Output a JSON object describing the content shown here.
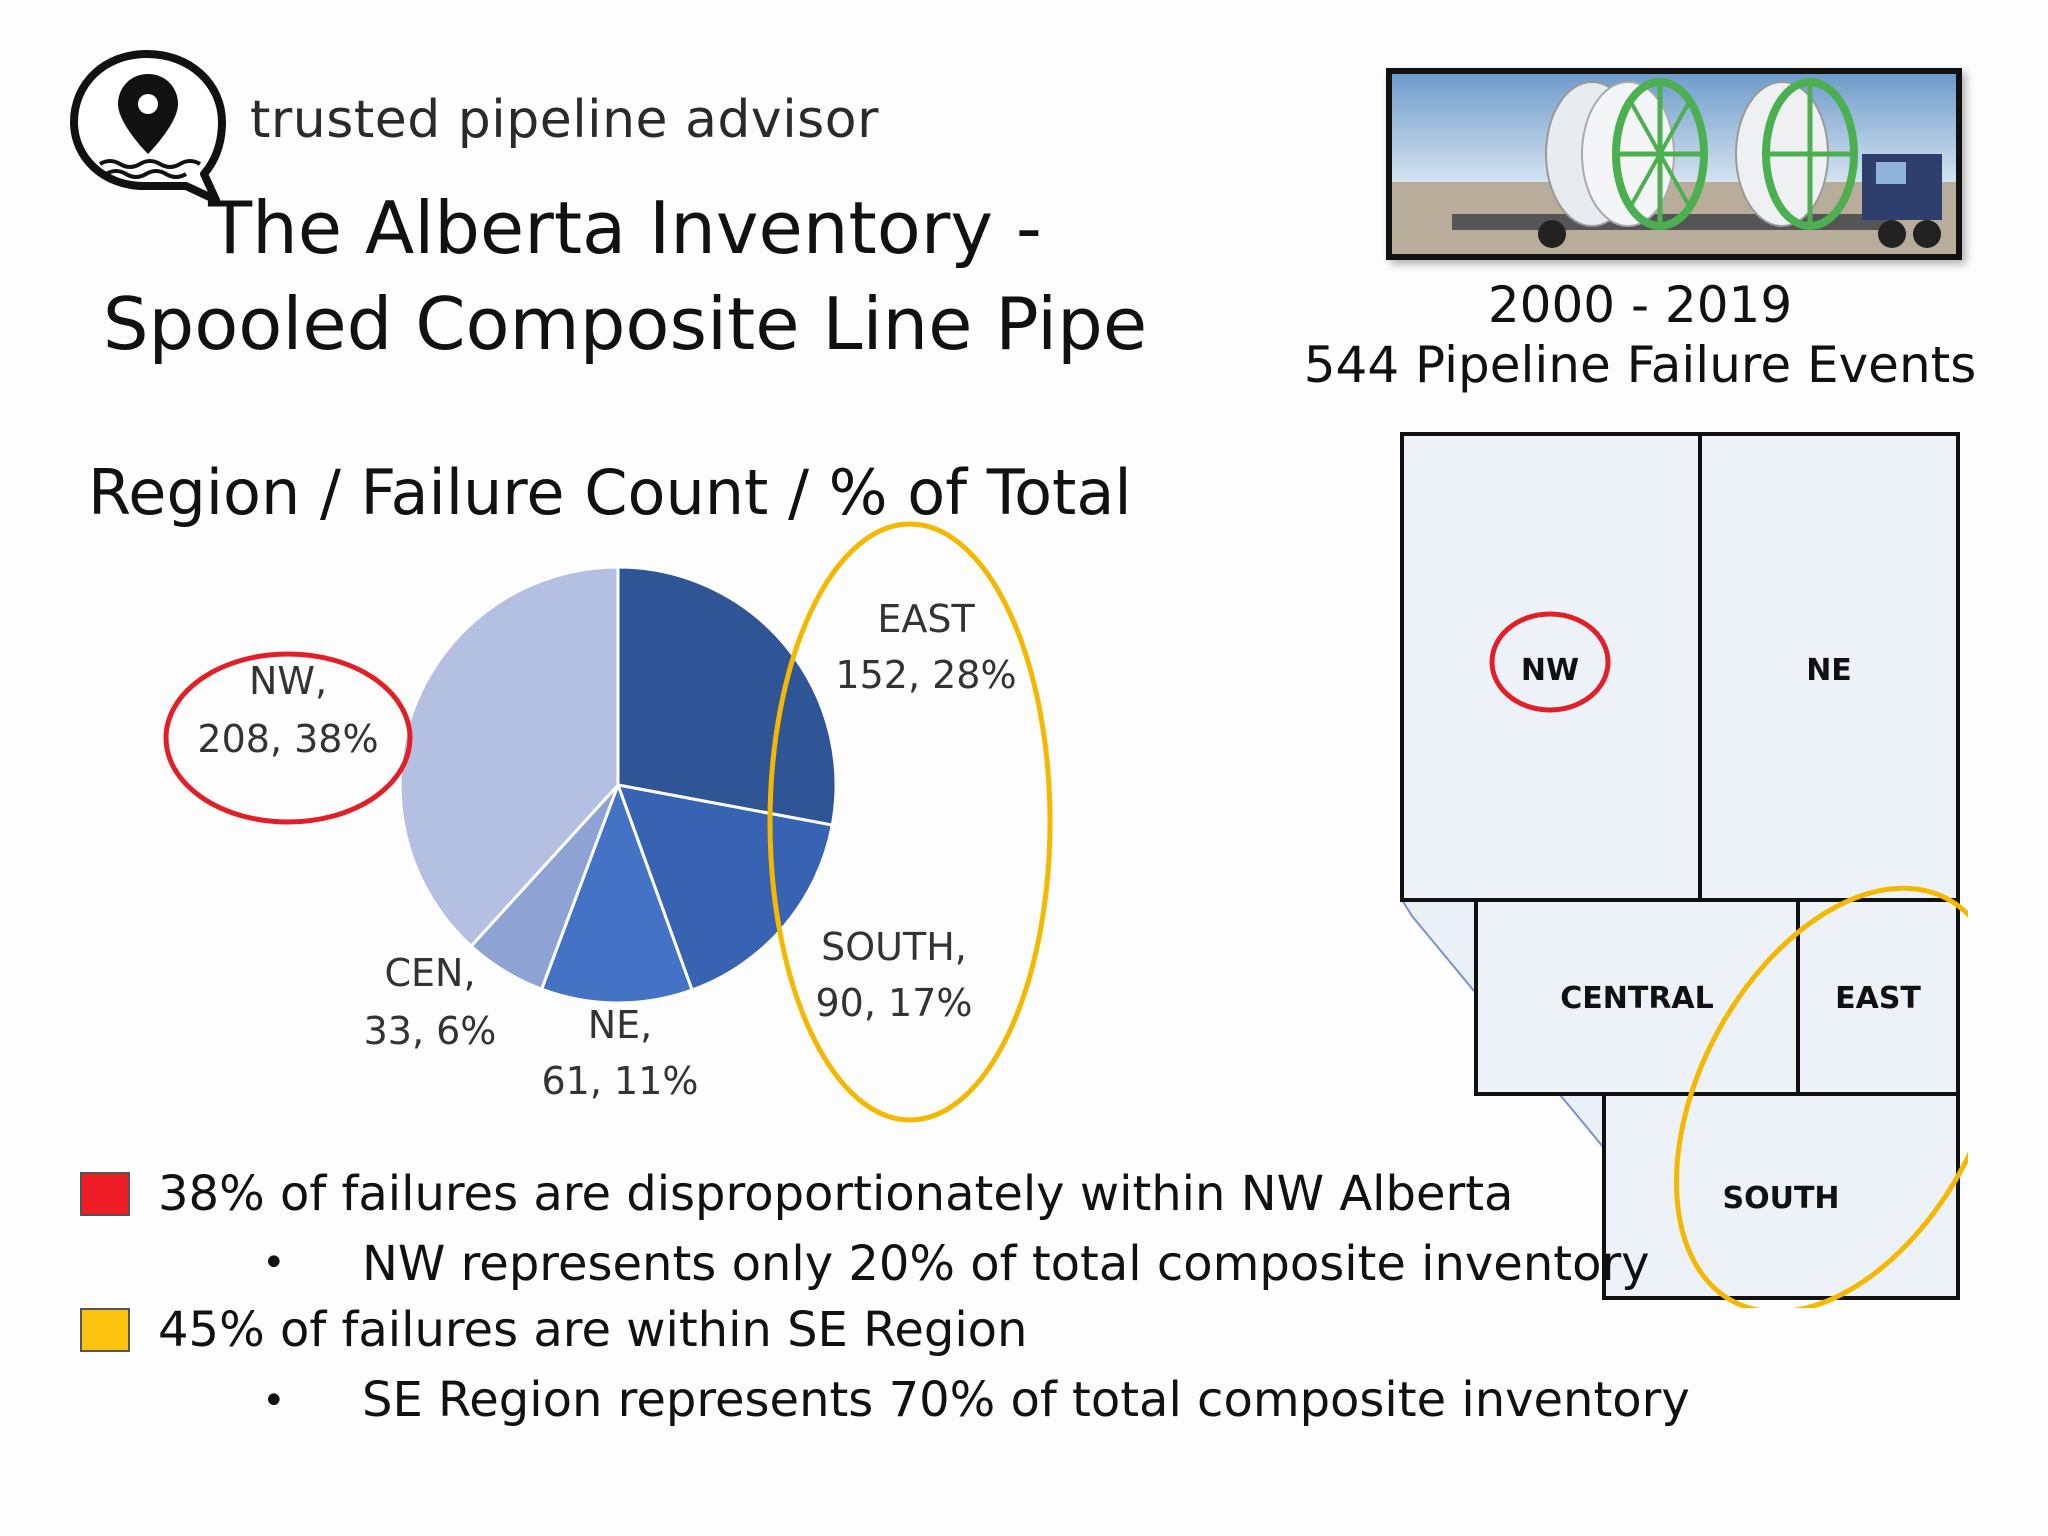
{
  "brand": {
    "name": "trusted pipeline advisor",
    "logo_icon": "map-pin-chat-bubble-icon"
  },
  "title": {
    "line1": "The Alberta Inventory -",
    "line2": "Spooled Composite Line Pipe"
  },
  "photo": {
    "icon": "pipe-spools-on-trailer-photo"
  },
  "summary": {
    "years": "2000 - 2019",
    "events": "544 Pipeline Failure Events"
  },
  "chart_heading": "Region / Failure Count / % of Total",
  "chart_data": {
    "type": "pie",
    "title": "Region / Failure Count / % of Total",
    "total": 544,
    "slices": [
      {
        "label_line1": "EAST",
        "label_line2": "152, 28%",
        "region": "EAST",
        "value": 152,
        "percent": 28,
        "color": "#2f5597"
      },
      {
        "label_line1": "SOUTH,",
        "label_line2": "90, 17%",
        "region": "SOUTH",
        "value": 90,
        "percent": 17,
        "color": "#3863b3"
      },
      {
        "label_line1": "NE,",
        "label_line2": "61, 11%",
        "region": "NE",
        "value": 61,
        "percent": 11,
        "color": "#4472c4"
      },
      {
        "label_line1": "CEN,",
        "label_line2": "33, 6%",
        "region": "CEN",
        "value": 33,
        "percent": 6,
        "color": "#8ea3d4"
      },
      {
        "label_line1": "NW,",
        "label_line2": "208, 38%",
        "region": "NW",
        "value": 208,
        "percent": 38,
        "color": "#b4c0e2"
      }
    ],
    "highlights": [
      {
        "name": "nw-highlight",
        "color": "#e21f26",
        "regions": [
          "NW"
        ]
      },
      {
        "name": "se-highlight",
        "color": "#f5b800",
        "regions": [
          "EAST",
          "SOUTH"
        ]
      }
    ]
  },
  "map": {
    "regions": [
      {
        "key": "nw",
        "label": "NW"
      },
      {
        "key": "ne",
        "label": "NE"
      },
      {
        "key": "central",
        "label": "CENTRAL"
      },
      {
        "key": "east",
        "label": "EAST"
      },
      {
        "key": "south",
        "label": "SOUTH"
      }
    ],
    "marker_colors": {
      "green": "#3e9b3e",
      "red": "#e53935",
      "orange": "#f0a020"
    }
  },
  "bullets": [
    {
      "box_color": "#ee1c24",
      "text": "38% of failures are disproportionately within NW Alberta",
      "sub": "NW represents only 20% of total composite inventory"
    },
    {
      "box_color": "#fbc210",
      "text": "45% of failures are within SE Region",
      "sub": "SE Region represents 70% of total composite inventory"
    }
  ],
  "bullet_dot": "•"
}
